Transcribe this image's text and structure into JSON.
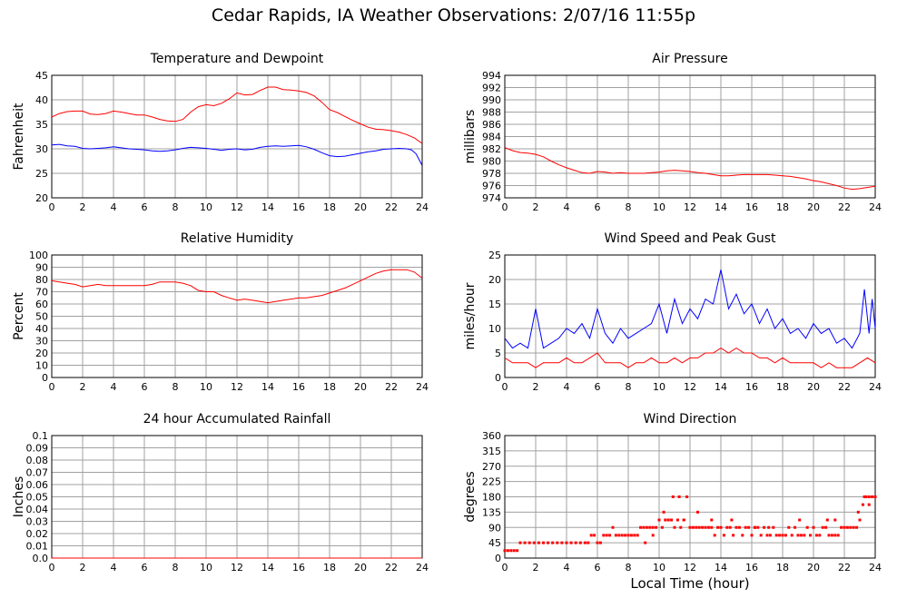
{
  "page": {
    "title": "Cedar Rapids, IA Weather Observations: 2/07/16 11:55p",
    "xlabel": "Local Time (hour)"
  },
  "colors": {
    "red": "#ff0000",
    "blue": "#0000ff",
    "grid": "#a0a0a0",
    "axis": "#000000"
  },
  "chart_data": [
    {
      "id": "temp",
      "type": "line",
      "title": "Temperature and Dewpoint",
      "xlabel": "",
      "ylabel": "Fahrenheit",
      "xlim": [
        0,
        24
      ],
      "ylim": [
        20,
        45
      ],
      "xticks": [
        0,
        2,
        4,
        6,
        8,
        10,
        12,
        14,
        16,
        18,
        20,
        22,
        24
      ],
      "yticks": [
        20,
        25,
        30,
        35,
        40,
        45
      ],
      "grid": true,
      "series": [
        {
          "color": "#ff0000",
          "x": [
            0,
            0.5,
            1,
            1.5,
            2,
            2.5,
            3,
            3.5,
            4,
            4.5,
            5,
            5.5,
            6,
            6.5,
            7,
            7.5,
            8,
            8.5,
            9,
            9.5,
            10,
            10.5,
            11,
            11.5,
            12,
            12.5,
            13,
            13.5,
            14,
            14.5,
            15,
            15.5,
            16,
            16.5,
            17,
            17.5,
            18,
            18.5,
            19,
            19.5,
            20,
            20.5,
            21,
            21.5,
            22,
            22.5,
            23,
            23.5,
            24
          ],
          "y": [
            36.5,
            37.2,
            37.6,
            37.7,
            37.7,
            37.1,
            37.0,
            37.2,
            37.7,
            37.5,
            37.2,
            36.9,
            36.9,
            36.5,
            36.0,
            35.7,
            35.6,
            36.0,
            37.5,
            38.6,
            39.0,
            38.8,
            39.3,
            40.2,
            41.4,
            41.0,
            41.1,
            41.9,
            42.6,
            42.6,
            42.1,
            42.0,
            41.8,
            41.5,
            40.8,
            39.5,
            38.0,
            37.4,
            36.6,
            35.8,
            35.1,
            34.4,
            34.0,
            33.9,
            33.7,
            33.4,
            32.9,
            32.2,
            31.1
          ]
        },
        {
          "color": "#0000ff",
          "x": [
            0,
            0.5,
            1,
            1.5,
            2,
            2.5,
            3,
            3.5,
            4,
            4.5,
            5,
            5.5,
            6,
            6.5,
            7,
            7.5,
            8,
            8.5,
            9,
            9.5,
            10,
            10.5,
            11,
            11.5,
            12,
            12.5,
            13,
            13.5,
            14,
            14.5,
            15,
            15.5,
            16,
            16.5,
            17,
            17.5,
            18,
            18.5,
            19,
            19.5,
            20,
            20.5,
            21,
            21.5,
            22,
            22.5,
            23,
            23.3,
            23.6,
            23.8,
            24
          ],
          "y": [
            30.8,
            30.9,
            30.6,
            30.5,
            30.1,
            30.0,
            30.1,
            30.2,
            30.4,
            30.2,
            30.0,
            29.9,
            29.8,
            29.6,
            29.5,
            29.6,
            29.8,
            30.1,
            30.3,
            30.2,
            30.1,
            29.9,
            29.7,
            29.9,
            30.0,
            29.8,
            29.9,
            30.3,
            30.5,
            30.6,
            30.5,
            30.6,
            30.7,
            30.4,
            29.9,
            29.2,
            28.6,
            28.4,
            28.5,
            28.8,
            29.1,
            29.4,
            29.6,
            29.9,
            30.0,
            30.1,
            30.0,
            29.8,
            29.0,
            27.8,
            26.6
          ]
        }
      ]
    },
    {
      "id": "pressure",
      "type": "line",
      "title": "Air Pressure",
      "xlabel": "",
      "ylabel": "millibars",
      "xlim": [
        0,
        24
      ],
      "ylim": [
        974,
        994
      ],
      "xticks": [
        0,
        2,
        4,
        6,
        8,
        10,
        12,
        14,
        16,
        18,
        20,
        22,
        24
      ],
      "yticks": [
        974,
        976,
        978,
        980,
        982,
        984,
        986,
        988,
        990,
        992,
        994
      ],
      "grid": true,
      "series": [
        {
          "color": "#ff0000",
          "x": [
            0,
            0.5,
            1,
            1.5,
            2,
            2.5,
            3,
            3.5,
            4,
            4.5,
            5,
            5.5,
            6,
            6.5,
            7,
            7.5,
            8,
            8.5,
            9,
            9.5,
            10,
            10.5,
            11,
            11.5,
            12,
            12.5,
            13,
            13.5,
            14,
            14.5,
            15,
            15.5,
            16,
            16.5,
            17,
            17.5,
            18,
            18.5,
            19,
            19.5,
            20,
            20.5,
            21,
            21.5,
            22,
            22.5,
            23,
            23.5,
            24
          ],
          "y": [
            982.2,
            981.7,
            981.4,
            981.3,
            981.1,
            980.7,
            980.0,
            979.4,
            978.9,
            978.5,
            978.1,
            978.0,
            978.3,
            978.2,
            978.0,
            978.1,
            978.0,
            978.0,
            978.0,
            978.1,
            978.2,
            978.4,
            978.5,
            978.4,
            978.3,
            978.1,
            978.0,
            977.8,
            977.6,
            977.6,
            977.7,
            977.8,
            977.8,
            977.8,
            977.8,
            977.7,
            977.6,
            977.5,
            977.3,
            977.1,
            976.8,
            976.6,
            976.3,
            976.0,
            975.6,
            975.4,
            975.5,
            975.7,
            975.9
          ]
        }
      ]
    },
    {
      "id": "humidity",
      "type": "line",
      "title": "Relative Humidity",
      "xlabel": "",
      "ylabel": "Percent",
      "xlim": [
        0,
        24
      ],
      "ylim": [
        0,
        100
      ],
      "xticks": [
        0,
        2,
        4,
        6,
        8,
        10,
        12,
        14,
        16,
        18,
        20,
        22,
        24
      ],
      "yticks": [
        0,
        10,
        20,
        30,
        40,
        50,
        60,
        70,
        80,
        90,
        100
      ],
      "grid": true,
      "series": [
        {
          "color": "#ff0000",
          "x": [
            0,
            0.5,
            1,
            1.5,
            2,
            2.5,
            3,
            3.5,
            4,
            4.5,
            5,
            5.5,
            6,
            6.5,
            7,
            7.5,
            8,
            8.5,
            9,
            9.5,
            10,
            10.5,
            11,
            11.5,
            12,
            12.5,
            13,
            13.5,
            14,
            14.5,
            15,
            15.5,
            16,
            16.5,
            17,
            17.5,
            18,
            18.5,
            19,
            19.5,
            20,
            20.5,
            21,
            21.5,
            22,
            22.5,
            23,
            23.5,
            24
          ],
          "y": [
            79,
            78,
            77,
            76,
            74,
            75,
            76,
            75,
            75,
            75,
            75,
            75,
            75,
            76,
            78,
            78,
            78,
            77,
            75,
            71,
            70,
            70,
            67,
            65,
            63,
            64,
            63,
            62,
            61,
            62,
            63,
            64,
            65,
            65,
            66,
            67,
            69,
            71,
            73,
            76,
            79,
            82,
            85,
            87,
            88,
            88,
            88,
            86,
            81
          ]
        }
      ]
    },
    {
      "id": "wind",
      "type": "line",
      "title": "Wind Speed and Peak Gust",
      "xlabel": "",
      "ylabel": "miles/hour",
      "xlim": [
        0,
        24
      ],
      "ylim": [
        0,
        25
      ],
      "xticks": [
        0,
        2,
        4,
        6,
        8,
        10,
        12,
        14,
        16,
        18,
        20,
        22,
        24
      ],
      "yticks": [
        0,
        5,
        10,
        15,
        20,
        25
      ],
      "grid": true,
      "series": [
        {
          "color": "#0000ff",
          "x": [
            0,
            0.5,
            1,
            1.5,
            2,
            2.5,
            3,
            3.5,
            4,
            4.5,
            5,
            5.5,
            6,
            6.5,
            7,
            7.5,
            8,
            8.5,
            9,
            9.5,
            10,
            10.5,
            11,
            11.5,
            12,
            12.5,
            13,
            13.5,
            14,
            14.5,
            15,
            15.5,
            16,
            16.5,
            17,
            17.5,
            18,
            18.5,
            19,
            19.5,
            20,
            20.5,
            21,
            21.5,
            22,
            22.5,
            23,
            23.3,
            23.6,
            23.8,
            24
          ],
          "y": [
            8,
            6,
            7,
            6,
            14,
            6,
            7,
            8,
            10,
            9,
            11,
            8,
            14,
            9,
            7,
            10,
            8,
            9,
            10,
            11,
            15,
            9,
            16,
            11,
            14,
            12,
            16,
            15,
            22,
            14,
            17,
            13,
            15,
            11,
            14,
            10,
            12,
            9,
            10,
            8,
            11,
            9,
            10,
            7,
            8,
            6,
            9,
            18,
            9,
            16,
            10
          ]
        },
        {
          "color": "#ff0000",
          "x": [
            0,
            0.5,
            1,
            1.5,
            2,
            2.5,
            3,
            3.5,
            4,
            4.5,
            5,
            5.5,
            6,
            6.5,
            7,
            7.5,
            8,
            8.5,
            9,
            9.5,
            10,
            10.5,
            11,
            11.5,
            12,
            12.5,
            13,
            13.5,
            14,
            14.5,
            15,
            15.5,
            16,
            16.5,
            17,
            17.5,
            18,
            18.5,
            19,
            19.5,
            20,
            20.5,
            21,
            21.5,
            22,
            22.5,
            23,
            23.5,
            24
          ],
          "y": [
            4,
            3,
            3,
            3,
            2,
            3,
            3,
            3,
            4,
            3,
            3,
            4,
            5,
            3,
            3,
            3,
            2,
            3,
            3,
            4,
            3,
            3,
            4,
            3,
            4,
            4,
            5,
            5,
            6,
            5,
            6,
            5,
            5,
            4,
            4,
            3,
            4,
            3,
            3,
            3,
            3,
            2,
            3,
            2,
            2,
            2,
            3,
            4,
            3
          ]
        }
      ]
    },
    {
      "id": "rain",
      "type": "line",
      "title": "24 hour Accumulated Rainfall",
      "xlabel": "",
      "ylabel": "Inches",
      "xlim": [
        0,
        24
      ],
      "ylim": [
        0,
        0.1
      ],
      "xticks": [
        0,
        2,
        4,
        6,
        8,
        10,
        12,
        14,
        16,
        18,
        20,
        22,
        24
      ],
      "yticks": [
        "0.0",
        "0.01",
        "0.02",
        "0.03",
        "0.04",
        "0.05",
        "0.06",
        "0.07",
        "0.08",
        "0.09",
        "0.1"
      ],
      "grid": true,
      "series": [
        {
          "color": "#ff0000",
          "x": [
            0,
            24
          ],
          "y": [
            0,
            0
          ]
        }
      ]
    },
    {
      "id": "direction",
      "type": "scatter",
      "title": "Wind Direction",
      "xlabel": "Local Time (hour)",
      "ylabel": "degrees",
      "xlim": [
        0,
        24
      ],
      "ylim": [
        0,
        360
      ],
      "xticks": [
        0,
        2,
        4,
        6,
        8,
        10,
        12,
        14,
        16,
        18,
        20,
        22,
        24
      ],
      "yticks": [
        0,
        45,
        90,
        135,
        180,
        225,
        270,
        315,
        360
      ],
      "grid": true,
      "series": [
        {
          "color": "#ff0000",
          "x": [
            0.0,
            0.2,
            0.4,
            0.6,
            0.8,
            1.0,
            1.3,
            1.6,
            1.9,
            2.2,
            2.5,
            2.8,
            3.1,
            3.4,
            3.7,
            4.0,
            4.3,
            4.6,
            4.9,
            5.2,
            5.4,
            5.6,
            5.8,
            6.0,
            6.2,
            6.4,
            6.6,
            6.8,
            7.0,
            7.2,
            7.4,
            7.6,
            7.8,
            8.0,
            8.2,
            8.4,
            8.6,
            8.8,
            9.0,
            9.2,
            9.4,
            9.6,
            9.8,
            10.0,
            10.2,
            10.4,
            10.6,
            10.8,
            11.0,
            11.2,
            11.4,
            11.6,
            11.8,
            12.0,
            12.2,
            12.4,
            12.6,
            12.8,
            13.0,
            13.2,
            13.4,
            13.6,
            13.8,
            14.0,
            14.2,
            14.4,
            14.6,
            14.8,
            15.0,
            15.2,
            15.4,
            15.6,
            15.8,
            16.0,
            16.2,
            16.4,
            16.6,
            16.8,
            17.0,
            17.2,
            17.4,
            17.6,
            17.8,
            18.0,
            18.2,
            18.4,
            18.6,
            18.8,
            19.0,
            19.2,
            19.4,
            19.6,
            19.8,
            20.0,
            20.2,
            20.4,
            20.6,
            20.8,
            21.0,
            21.2,
            21.4,
            21.6,
            21.8,
            22.0,
            22.2,
            22.4,
            22.6,
            22.8,
            23.0,
            23.2,
            23.4,
            23.6,
            23.8,
            24.0,
            9.1,
            9.6,
            10.3,
            10.9,
            11.3,
            11.6,
            12.5,
            13.4,
            14.7,
            16.2,
            17.1,
            19.1,
            20.9,
            21.4,
            22.9,
            23.3,
            23.6
          ],
          "y": [
            22,
            22,
            22,
            22,
            22,
            45,
            45,
            45,
            45,
            45,
            45,
            45,
            45,
            45,
            45,
            45,
            45,
            45,
            45,
            45,
            45,
            67,
            67,
            45,
            45,
            67,
            67,
            67,
            90,
            67,
            67,
            67,
            67,
            67,
            67,
            67,
            67,
            90,
            90,
            90,
            90,
            90,
            90,
            112,
            90,
            112,
            112,
            112,
            90,
            112,
            90,
            112,
            180,
            90,
            90,
            90,
            90,
            90,
            90,
            90,
            90,
            67,
            90,
            90,
            67,
            90,
            90,
            67,
            90,
            90,
            67,
            90,
            90,
            67,
            90,
            90,
            67,
            90,
            67,
            67,
            90,
            67,
            67,
            67,
            67,
            90,
            67,
            90,
            67,
            67,
            67,
            90,
            67,
            90,
            67,
            67,
            90,
            90,
            67,
            67,
            67,
            67,
            90,
            90,
            90,
            90,
            90,
            90,
            112,
            157,
            180,
            180,
            180,
            180,
            45,
            67,
            135,
            180,
            180,
            112,
            135,
            112,
            112,
            90,
            90,
            112,
            112,
            112,
            135,
            180,
            157
          ]
        }
      ]
    }
  ]
}
